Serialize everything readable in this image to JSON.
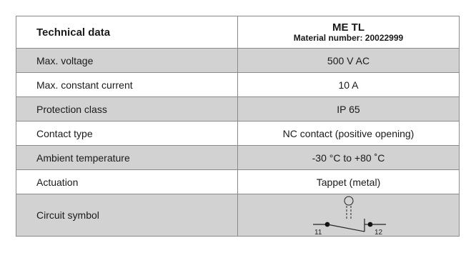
{
  "header": {
    "label": "Technical data",
    "product_name": "ME TL",
    "material_number": "Material number: 20022999"
  },
  "rows": [
    {
      "label": "Max. voltage",
      "value": "500 V AC"
    },
    {
      "label": "Max. constant current",
      "value": "10 A"
    },
    {
      "label": "Protection class",
      "value": "IP 65"
    },
    {
      "label": "Contact type",
      "value": "NC contact (positive opening)"
    },
    {
      "label": "Ambient temperature",
      "value": "-30 °C to +80 ˚C"
    },
    {
      "label": "Actuation",
      "value": "Tappet (metal)"
    }
  ],
  "circuit_symbol": {
    "label": "Circuit symbol",
    "icon": "nc-contact-symbol-icon",
    "terminal_left": "11",
    "terminal_right": "12"
  },
  "colors": {
    "shade": "#d2d2d2",
    "border": "#8a8a8a"
  }
}
